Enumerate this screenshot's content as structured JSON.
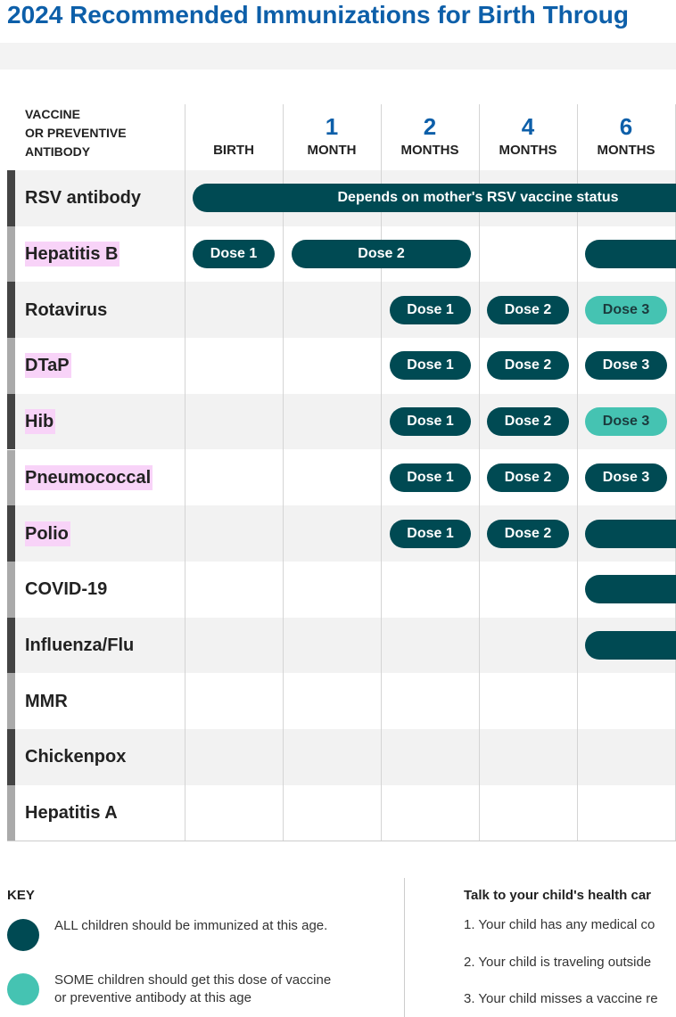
{
  "header": {
    "title": "2024 Recommended Immunizations for Birth Throug"
  },
  "table": {
    "corner": [
      "VACCINE",
      "OR PREVENTIVE",
      "ANTIBODY"
    ],
    "columns": [
      {
        "label": "BIRTH"
      },
      {
        "number": 1,
        "label": "MONTH"
      },
      {
        "number": 2,
        "label": "MONTHS"
      },
      {
        "number": 4,
        "label": "MONTHS"
      },
      {
        "number": 6,
        "label": "MONTHS"
      }
    ],
    "rows": [
      {
        "name": "RSV antibody",
        "doses": [
          "Depends on mother's RSV vaccine status"
        ]
      },
      {
        "name": "Hepatitis B",
        "doses": [
          "Dose 1",
          "Dose 2"
        ]
      },
      {
        "name": "Rotavirus",
        "doses": [
          "Dose 1",
          "Dose 2",
          "Dose 3"
        ]
      },
      {
        "name": "DTaP",
        "doses": [
          "Dose 1",
          "Dose 2",
          "Dose 3"
        ]
      },
      {
        "name": "Hib",
        "doses": [
          "Dose 1",
          "Dose 2",
          "Dose 3"
        ]
      },
      {
        "name": "Pneumococcal",
        "doses": [
          "Dose 1",
          "Dose 2",
          "Dose 3"
        ]
      },
      {
        "name": "Polio",
        "doses": [
          "Dose 1",
          "Dose 2"
        ]
      },
      {
        "name": "COVID-19",
        "doses": []
      },
      {
        "name": "Influenza/Flu",
        "doses": []
      },
      {
        "name": "MMR",
        "doses": []
      },
      {
        "name": "Chickenpox",
        "doses": []
      },
      {
        "name": "Hepatitis A",
        "doses": []
      }
    ]
  },
  "key": {
    "title": "KEY",
    "items": [
      "ALL children should be immunized at this age.",
      "SOME children should get this dose of vaccine or preventive antibody at this age"
    ]
  },
  "notes": {
    "title": "Talk to your child's health car",
    "items": [
      "1. Your child has any medical co",
      "2. Your child is traveling outside",
      "3. Your child misses a vaccine re"
    ]
  }
}
